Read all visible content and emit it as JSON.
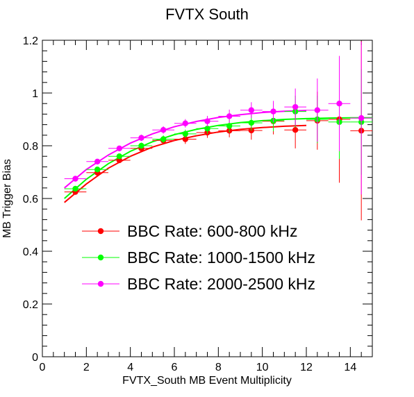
{
  "chart_data": {
    "type": "scatter",
    "title": "FVTX South",
    "xlabel": "FVTX_South MB Event Multiplicity",
    "ylabel": "MB Trigger Bias",
    "xlim": [
      0,
      15
    ],
    "ylim": [
      0,
      1.2
    ],
    "x_ticks": [
      0,
      2,
      4,
      6,
      8,
      10,
      12,
      14
    ],
    "y_ticks": [
      0,
      0.2,
      0.4,
      0.6,
      0.8,
      1,
      1.2
    ],
    "x_tick_labels": [
      "0",
      "2",
      "4",
      "6",
      "8",
      "10",
      "12",
      "14"
    ],
    "y_tick_labels": [
      "0",
      "0.2",
      "0.4",
      "0.6",
      "0.8",
      "1",
      "1.2"
    ],
    "grid": false,
    "legend_position": "bottom-center",
    "series": [
      {
        "name": "BBC Rate: 600-800 kHz",
        "color": "#ff0000",
        "x": [
          1.5,
          2.5,
          3.5,
          4.5,
          5.5,
          6.5,
          7.5,
          8.5,
          9.5,
          10.5,
          11.5,
          12.5,
          13.5,
          14.5
        ],
        "y": [
          0.625,
          0.698,
          0.745,
          0.79,
          0.82,
          0.825,
          0.85,
          0.857,
          0.858,
          0.893,
          0.86,
          0.895,
          0.9,
          0.857
        ],
        "y_err": [
          0.01,
          0.01,
          0.01,
          0.012,
          0.015,
          0.018,
          0.02,
          0.025,
          0.035,
          0.05,
          0.07,
          0.11,
          0.24,
          0.34
        ],
        "fit": [
          [
            1.0,
            0.585
          ],
          [
            2.0,
            0.655
          ],
          [
            3.0,
            0.715
          ],
          [
            4.0,
            0.76
          ],
          [
            5.0,
            0.795
          ],
          [
            6.0,
            0.82
          ],
          [
            7.0,
            0.838
          ],
          [
            8.0,
            0.852
          ],
          [
            9.0,
            0.862
          ],
          [
            10.0,
            0.869
          ],
          [
            11.0,
            0.874
          ],
          [
            12.0,
            0.877
          ]
        ]
      },
      {
        "name": "BBC Rate: 1000-1500 kHz",
        "color": "#00ff00",
        "x": [
          1.5,
          2.5,
          3.5,
          4.5,
          5.5,
          6.5,
          7.5,
          8.5,
          9.5,
          10.5,
          11.5,
          12.5,
          13.5,
          14.5
        ],
        "y": [
          0.637,
          0.71,
          0.76,
          0.8,
          0.825,
          0.845,
          0.865,
          0.875,
          0.887,
          0.895,
          0.93,
          0.9,
          0.89,
          0.89
        ],
        "y_err": [
          0.01,
          0.01,
          0.01,
          0.012,
          0.014,
          0.016,
          0.02,
          0.025,
          0.03,
          0.04,
          0.06,
          0.09,
          0.14,
          0.2
        ],
        "fit": [
          [
            1.0,
            0.6
          ],
          [
            2.0,
            0.673
          ],
          [
            3.0,
            0.732
          ],
          [
            4.0,
            0.779
          ],
          [
            5.0,
            0.815
          ],
          [
            6.0,
            0.842
          ],
          [
            7.0,
            0.862
          ],
          [
            8.0,
            0.877
          ],
          [
            9.0,
            0.888
          ],
          [
            10.0,
            0.895
          ],
          [
            11.0,
            0.9
          ],
          [
            12.0,
            0.903
          ],
          [
            13.0,
            0.905
          ],
          [
            14.0,
            0.906
          ],
          [
            15.0,
            0.906
          ]
        ]
      },
      {
        "name": "BBC Rate: 2000-2500 kHz",
        "color": "#ff00ff",
        "x": [
          1.5,
          2.5,
          3.5,
          4.5,
          5.5,
          6.5,
          7.5,
          8.5,
          9.5,
          10.5,
          11.5,
          12.5,
          13.5,
          14.5
        ],
        "y": [
          0.675,
          0.74,
          0.79,
          0.83,
          0.86,
          0.885,
          0.893,
          0.912,
          0.935,
          0.93,
          0.947,
          0.935,
          0.96,
          0.905
        ],
        "y_err": [
          0.01,
          0.01,
          0.01,
          0.012,
          0.014,
          0.016,
          0.02,
          0.025,
          0.03,
          0.04,
          0.07,
          0.12,
          0.18,
          0.29
        ],
        "fit": [
          [
            1.0,
            0.64
          ],
          [
            2.0,
            0.71
          ],
          [
            3.0,
            0.765
          ],
          [
            4.0,
            0.81
          ],
          [
            5.0,
            0.845
          ],
          [
            6.0,
            0.872
          ],
          [
            7.0,
            0.892
          ],
          [
            8.0,
            0.907
          ],
          [
            9.0,
            0.918
          ],
          [
            10.0,
            0.926
          ],
          [
            11.0,
            0.931
          ],
          [
            12.0,
            0.934
          ]
        ]
      }
    ]
  }
}
